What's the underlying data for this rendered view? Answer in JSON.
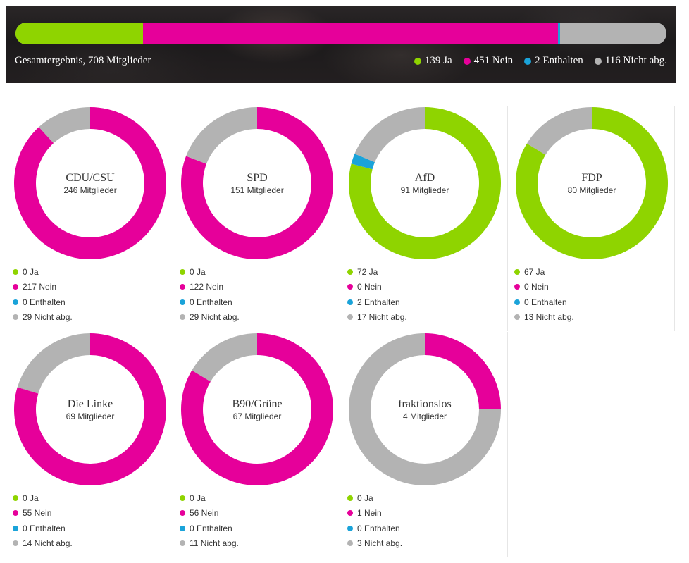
{
  "colors": {
    "ja": "#8fd400",
    "nein": "#e6009a",
    "enthalten": "#1aa3d9",
    "nicht_abg": "#b3b3b3"
  },
  "total": {
    "label": "Gesamtergebnis, 708 Mitglieder",
    "legend": [
      "139 Ja",
      "451 Nein",
      "2 Enthalten",
      "116 Nicht abg."
    ]
  },
  "chart_data": {
    "type": "pie",
    "total": {
      "ja": 139,
      "nein": 451,
      "enthalten": 2,
      "nicht_abg": 116,
      "members": 708
    },
    "parties": [
      {
        "name": "CDU/CSU",
        "members_label": "246 Mitglieder",
        "ja": 0,
        "nein": 217,
        "enthalten": 0,
        "nicht_abg": 29,
        "legend": [
          "0 Ja",
          "217 Nein",
          "0 Enthalten",
          "29 Nicht abg."
        ]
      },
      {
        "name": "SPD",
        "members_label": "151 Mitglieder",
        "ja": 0,
        "nein": 122,
        "enthalten": 0,
        "nicht_abg": 29,
        "legend": [
          "0 Ja",
          "122 Nein",
          "0 Enthalten",
          "29 Nicht abg."
        ]
      },
      {
        "name": "AfD",
        "members_label": "91 Mitglieder",
        "ja": 72,
        "nein": 0,
        "enthalten": 2,
        "nicht_abg": 17,
        "legend": [
          "72 Ja",
          "0 Nein",
          "2 Enthalten",
          "17 Nicht abg."
        ]
      },
      {
        "name": "FDP",
        "members_label": "80 Mitglieder",
        "ja": 67,
        "nein": 0,
        "enthalten": 0,
        "nicht_abg": 13,
        "legend": [
          "67 Ja",
          "0 Nein",
          "0 Enthalten",
          "13 Nicht abg."
        ]
      },
      {
        "name": "Die Linke",
        "members_label": "69 Mitglieder",
        "ja": 0,
        "nein": 55,
        "enthalten": 0,
        "nicht_abg": 14,
        "legend": [
          "0 Ja",
          "55 Nein",
          "0 Enthalten",
          "14 Nicht abg."
        ]
      },
      {
        "name": "B90/Grüne",
        "members_label": "67 Mitglieder",
        "ja": 0,
        "nein": 56,
        "enthalten": 0,
        "nicht_abg": 11,
        "legend": [
          "0 Ja",
          "56 Nein",
          "0 Enthalten",
          "11 Nicht abg."
        ]
      },
      {
        "name": "fraktionslos",
        "members_label": "4 Mitglieder",
        "ja": 0,
        "nein": 1,
        "enthalten": 0,
        "nicht_abg": 3,
        "legend": [
          "0 Ja",
          "1 Nein",
          "0 Enthalten",
          "3 Nicht abg."
        ]
      }
    ]
  }
}
